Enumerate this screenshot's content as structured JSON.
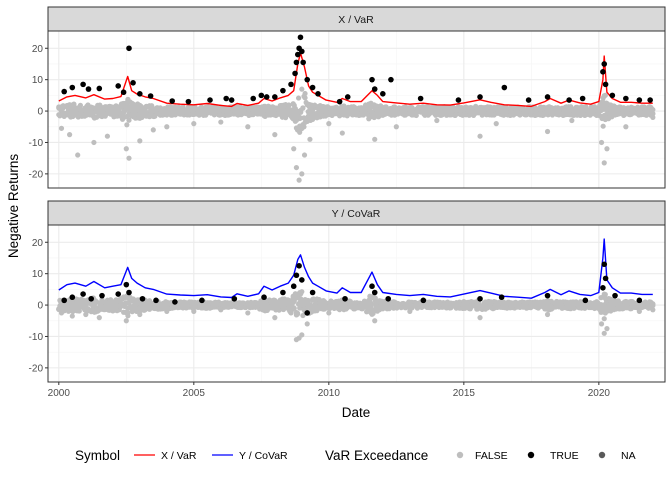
{
  "colors": {
    "var_line": "#ff0000",
    "covar_line": "#0000ff",
    "false_point": "#bebebe",
    "true_point": "#000000",
    "na_point": "#595959",
    "strip_bg": "#d9d9d9",
    "grid_major": "#ebebeb",
    "grid_minor": "#f5f5f5"
  },
  "chart_data": {
    "type": "line",
    "xlabel": "Date",
    "ylabel": "Negative Returns",
    "xlim": [
      1999.6,
      2022.45
    ],
    "ylim": [
      -24.5,
      25.5
    ],
    "x_ticks": [
      2000,
      2005,
      2010,
      2015,
      2020
    ],
    "x_tick_labels": [
      "2000",
      "2005",
      "2010",
      "2015",
      "2020"
    ],
    "y_ticks": [
      -20,
      -10,
      0,
      10,
      20
    ],
    "y_tick_labels": [
      "-20",
      "-10",
      "0",
      "10",
      "20"
    ],
    "grid": true,
    "legend_position": "bottom",
    "panels": [
      {
        "strip": "X / VaR",
        "line_series": "X / VaR",
        "risk_line": {
          "x": [
            2000.0,
            2000.3,
            2000.6,
            2001.0,
            2001.3,
            2001.7,
            2002.0,
            2002.3,
            2002.55,
            2002.7,
            2002.9,
            2003.2,
            2003.5,
            2004.0,
            2004.5,
            2005.0,
            2005.5,
            2006.0,
            2006.4,
            2006.6,
            2007.0,
            2007.4,
            2007.6,
            2007.9,
            2008.2,
            2008.5,
            2008.7,
            2008.85,
            2008.95,
            2009.1,
            2009.25,
            2009.4,
            2009.6,
            2009.9,
            2010.3,
            2010.5,
            2010.8,
            2011.2,
            2011.6,
            2011.8,
            2012.0,
            2012.5,
            2013.0,
            2013.5,
            2014.0,
            2014.5,
            2015.0,
            2015.6,
            2016.0,
            2016.5,
            2017.0,
            2017.5,
            2018.0,
            2018.2,
            2018.6,
            2018.9,
            2019.3,
            2019.7,
            2020.0,
            2020.15,
            2020.2,
            2020.3,
            2020.5,
            2020.8,
            2021.2,
            2021.6,
            2022.0
          ],
          "y": [
            3.2,
            4.5,
            5.0,
            4.2,
            5.2,
            3.8,
            4.0,
            4.6,
            11.0,
            6.5,
            5.4,
            4.5,
            4.0,
            2.5,
            2.2,
            2.0,
            2.4,
            1.8,
            1.5,
            2.4,
            1.8,
            2.5,
            4.0,
            3.2,
            4.2,
            5.0,
            6.5,
            15.0,
            18.5,
            14.0,
            8.0,
            6.0,
            5.0,
            3.5,
            2.8,
            4.0,
            3.0,
            3.0,
            6.5,
            5.0,
            3.0,
            2.6,
            2.2,
            2.5,
            2.0,
            1.9,
            2.6,
            3.6,
            2.8,
            2.0,
            1.8,
            1.5,
            3.0,
            4.0,
            2.5,
            3.5,
            2.6,
            2.2,
            3.0,
            10.0,
            17.5,
            6.0,
            4.0,
            2.8,
            2.8,
            2.5,
            2.5
          ]
        },
        "exceedance_true_points": {
          "x": [
            2000.2,
            2000.5,
            2000.9,
            2001.1,
            2001.5,
            2002.2,
            2002.4,
            2002.6,
            2002.75,
            2003.0,
            2003.4,
            2004.2,
            2004.8,
            2005.6,
            2006.2,
            2006.4,
            2007.2,
            2007.5,
            2007.7,
            2008.0,
            2008.3,
            2008.6,
            2008.75,
            2008.8,
            2008.85,
            2008.9,
            2008.95,
            2009.0,
            2009.05,
            2009.2,
            2009.4,
            2009.6,
            2010.4,
            2010.7,
            2011.6,
            2011.7,
            2012.0,
            2012.3,
            2013.4,
            2014.8,
            2015.6,
            2016.5,
            2017.4,
            2018.1,
            2018.9,
            2019.4,
            2020.15,
            2020.2,
            2020.25,
            2020.5,
            2021.0,
            2021.5,
            2021.9
          ],
          "y": [
            6.2,
            7.5,
            8.5,
            7.0,
            7.2,
            8.0,
            6.0,
            20.0,
            9.0,
            5.5,
            4.8,
            3.2,
            3.0,
            3.5,
            4.0,
            3.5,
            4.0,
            5.0,
            4.5,
            4.5,
            6.5,
            8.5,
            12.0,
            15.5,
            18.0,
            20.0,
            23.5,
            19.0,
            15.5,
            10.0,
            7.5,
            5.5,
            3.0,
            4.5,
            10.0,
            7.0,
            5.5,
            10.0,
            4.0,
            3.5,
            4.5,
            7.5,
            3.5,
            4.5,
            3.5,
            4.0,
            12.5,
            15.0,
            8.5,
            5.0,
            4.0,
            3.5,
            3.5
          ]
        },
        "exceedance_false_points": {
          "x": [
            2000.1,
            2000.4,
            2000.7,
            2001.3,
            2001.8,
            2002.5,
            2002.6,
            2003.0,
            2003.5,
            2004.0,
            2005.0,
            2006.0,
            2007.0,
            2008.0,
            2008.7,
            2008.8,
            2008.9,
            2009.0,
            2009.1,
            2009.3,
            2010.0,
            2010.5,
            2011.7,
            2012.5,
            2014.0,
            2015.6,
            2016.2,
            2018.1,
            2019.0,
            2020.1,
            2020.2,
            2020.3,
            2021.0,
            2022.0
          ],
          "y": [
            -5.5,
            -7.5,
            -14.0,
            -10.0,
            -8.0,
            -12.0,
            -15.0,
            -9.5,
            -6.0,
            -5.0,
            -4.0,
            -3.5,
            -5.0,
            -7.5,
            -12.0,
            -18.0,
            -22.0,
            -20.0,
            -14.0,
            -9.0,
            -4.0,
            -7.0,
            -9.0,
            -5.0,
            -3.0,
            -8.0,
            -4.0,
            -6.5,
            -3.0,
            -10.0,
            -16.5,
            -12.0,
            -5.0,
            -2.0
          ]
        }
      },
      {
        "strip": "Y / CoVaR",
        "line_series": "Y / CoVaR",
        "risk_line": {
          "x": [
            2000.0,
            2000.3,
            2000.6,
            2001.0,
            2001.3,
            2001.7,
            2002.0,
            2002.3,
            2002.55,
            2002.7,
            2002.9,
            2003.2,
            2003.5,
            2004.0,
            2004.5,
            2005.0,
            2005.5,
            2006.0,
            2006.4,
            2006.6,
            2007.0,
            2007.4,
            2007.6,
            2007.9,
            2008.2,
            2008.5,
            2008.7,
            2008.85,
            2008.95,
            2009.1,
            2009.25,
            2009.4,
            2009.6,
            2009.9,
            2010.3,
            2010.5,
            2010.8,
            2011.2,
            2011.6,
            2011.8,
            2012.0,
            2012.5,
            2013.0,
            2013.5,
            2014.0,
            2014.5,
            2015.0,
            2015.6,
            2016.0,
            2016.5,
            2017.0,
            2017.5,
            2018.0,
            2018.2,
            2018.6,
            2018.9,
            2019.3,
            2019.7,
            2020.0,
            2020.15,
            2020.2,
            2020.3,
            2020.5,
            2020.8,
            2021.2,
            2021.6,
            2022.0
          ],
          "y": [
            4.8,
            6.5,
            7.0,
            6.0,
            7.5,
            5.5,
            6.0,
            6.5,
            12.0,
            8.5,
            7.0,
            5.5,
            5.0,
            3.5,
            3.2,
            3.0,
            3.3,
            2.6,
            2.4,
            3.6,
            2.8,
            3.6,
            6.0,
            4.8,
            6.0,
            7.0,
            9.5,
            14.5,
            16.0,
            12.0,
            9.0,
            7.0,
            6.0,
            4.5,
            3.8,
            5.5,
            4.0,
            4.0,
            10.5,
            6.5,
            4.0,
            3.4,
            3.0,
            3.4,
            2.8,
            2.6,
            3.5,
            4.6,
            3.8,
            2.8,
            2.5,
            2.2,
            4.0,
            5.0,
            3.3,
            4.5,
            3.4,
            3.0,
            4.0,
            15.0,
            21.0,
            8.0,
            5.5,
            3.8,
            3.8,
            3.4,
            3.4
          ]
        },
        "exceedance_true_points": {
          "x": [
            2000.2,
            2000.5,
            2000.9,
            2001.2,
            2001.6,
            2002.2,
            2002.5,
            2002.6,
            2003.1,
            2003.6,
            2004.3,
            2005.3,
            2006.5,
            2007.6,
            2008.3,
            2008.7,
            2008.8,
            2008.9,
            2009.0,
            2009.2,
            2009.4,
            2010.6,
            2011.6,
            2011.7,
            2012.2,
            2013.5,
            2015.6,
            2016.4,
            2018.1,
            2019.5,
            2020.15,
            2020.2,
            2020.25,
            2020.6,
            2021.5
          ],
          "y": [
            1.5,
            2.5,
            3.5,
            2.0,
            3.0,
            3.5,
            6.5,
            4.0,
            2.0,
            1.5,
            1.0,
            1.5,
            2.0,
            2.5,
            4.0,
            6.0,
            9.5,
            12.5,
            8.0,
            -2.5,
            4.0,
            2.0,
            6.0,
            4.0,
            2.0,
            1.5,
            2.0,
            2.5,
            3.0,
            1.5,
            5.5,
            13.0,
            8.5,
            3.0,
            1.5
          ]
        },
        "exceedance_false_points": {
          "x": [
            2000.1,
            2000.5,
            2001.0,
            2001.5,
            2002.5,
            2003.0,
            2004.0,
            2005.0,
            2006.0,
            2007.0,
            2008.0,
            2008.8,
            2008.9,
            2009.0,
            2009.2,
            2010.0,
            2011.7,
            2013.0,
            2015.6,
            2018.1,
            2020.1,
            2020.2,
            2020.3,
            2021.5,
            2022.0
          ],
          "y": [
            -2.5,
            -3.5,
            -3.0,
            -4.0,
            -5.0,
            -3.0,
            -2.0,
            -2.0,
            -1.5,
            -2.5,
            -4.0,
            -11.0,
            -10.5,
            -9.5,
            -6.0,
            -2.5,
            -5.0,
            -2.0,
            -4.0,
            -3.0,
            -6.0,
            -9.0,
            -7.5,
            -2.0,
            -1.5
          ]
        }
      }
    ],
    "legends": {
      "symbol": {
        "title": "Symbol",
        "items": [
          {
            "label": "X / VaR",
            "color": "#ff0000"
          },
          {
            "label": "Y / CoVaR",
            "color": "#0000ff"
          }
        ]
      },
      "exceedance": {
        "title": "VaR Exceedance",
        "items": [
          {
            "label": "FALSE",
            "color": "#bebebe"
          },
          {
            "label": "TRUE",
            "color": "#000000"
          },
          {
            "label": "NA",
            "color": "#595959"
          }
        ]
      }
    }
  }
}
